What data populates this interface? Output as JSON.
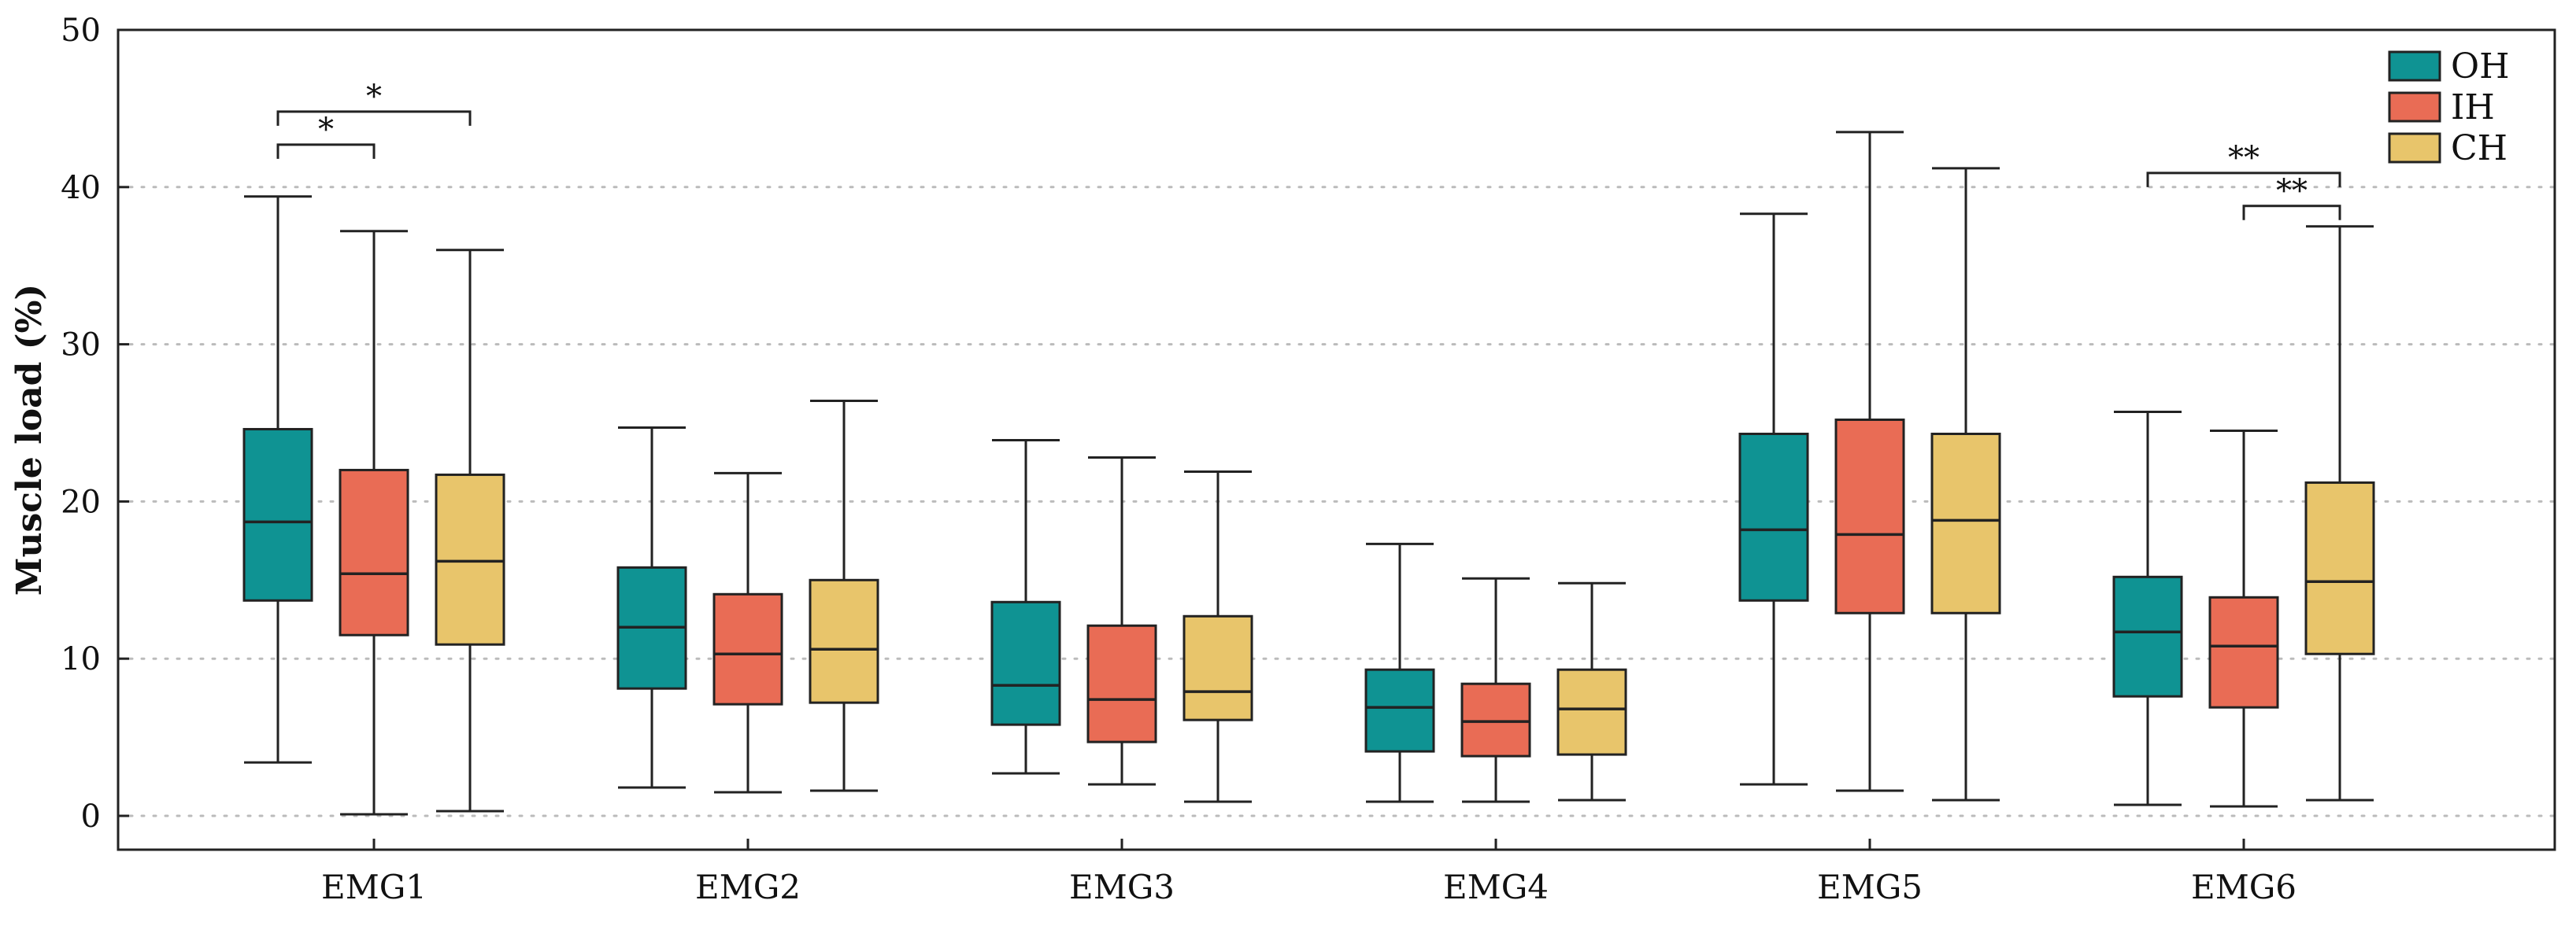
{
  "chart_data": {
    "type": "box",
    "ylabel": "Muscle load (%)",
    "ylim": [
      0,
      50
    ],
    "yticks": [
      0,
      10,
      20,
      30,
      40,
      50
    ],
    "grid": "horizontal-dotted",
    "legend_position": "top-right",
    "categories": [
      "EMG1",
      "EMG2",
      "EMG3",
      "EMG4",
      "EMG5",
      "EMG6"
    ],
    "series": [
      {
        "name": "OH",
        "color": "#0f9393",
        "boxes": [
          {
            "min": 3.4,
            "q1": 13.7,
            "median": 18.7,
            "q3": 24.6,
            "max": 39.4
          },
          {
            "min": 1.8,
            "q1": 8.1,
            "median": 12.0,
            "q3": 15.8,
            "max": 24.7
          },
          {
            "min": 2.7,
            "q1": 5.8,
            "median": 8.3,
            "q3": 13.6,
            "max": 23.9
          },
          {
            "min": 0.9,
            "q1": 4.1,
            "median": 6.9,
            "q3": 9.3,
            "max": 17.3
          },
          {
            "min": 2.0,
            "q1": 13.7,
            "median": 18.2,
            "q3": 24.3,
            "max": 38.3
          },
          {
            "min": 0.7,
            "q1": 7.6,
            "median": 11.7,
            "q3": 15.2,
            "max": 25.7
          }
        ]
      },
      {
        "name": "IH",
        "color": "#e96c55",
        "boxes": [
          {
            "min": 0.1,
            "q1": 11.5,
            "median": 15.4,
            "q3": 22.0,
            "max": 37.2
          },
          {
            "min": 1.5,
            "q1": 7.1,
            "median": 10.3,
            "q3": 14.1,
            "max": 21.8
          },
          {
            "min": 2.0,
            "q1": 4.7,
            "median": 7.4,
            "q3": 12.1,
            "max": 22.8
          },
          {
            "min": 0.9,
            "q1": 3.8,
            "median": 6.0,
            "q3": 8.4,
            "max": 15.1
          },
          {
            "min": 1.6,
            "q1": 12.9,
            "median": 17.9,
            "q3": 25.2,
            "max": 43.5
          },
          {
            "min": 0.6,
            "q1": 6.9,
            "median": 10.8,
            "q3": 13.9,
            "max": 24.5
          }
        ]
      },
      {
        "name": "CH",
        "color": "#e8c56b",
        "boxes": [
          {
            "min": 0.3,
            "q1": 10.9,
            "median": 16.2,
            "q3": 21.7,
            "max": 36.0
          },
          {
            "min": 1.6,
            "q1": 7.2,
            "median": 10.6,
            "q3": 15.0,
            "max": 26.4
          },
          {
            "min": 0.9,
            "q1": 6.1,
            "median": 7.9,
            "q3": 12.7,
            "max": 21.9
          },
          {
            "min": 1.0,
            "q1": 3.9,
            "median": 6.8,
            "q3": 9.3,
            "max": 14.8
          },
          {
            "min": 1.0,
            "q1": 12.9,
            "median": 18.8,
            "q3": 24.3,
            "max": 41.2
          },
          {
            "min": 1.0,
            "q1": 10.3,
            "median": 14.9,
            "q3": 21.2,
            "max": 37.5
          }
        ]
      }
    ],
    "significance": [
      {
        "category": "EMG1",
        "from": "OH",
        "to": "CH",
        "label": "*",
        "y": 44.8
      },
      {
        "category": "EMG1",
        "from": "OH",
        "to": "IH",
        "label": "*",
        "y": 42.7
      },
      {
        "category": "EMG6",
        "from": "OH",
        "to": "CH",
        "label": "**",
        "y": 40.9
      },
      {
        "category": "EMG6",
        "from": "IH",
        "to": "CH",
        "label": "**",
        "y": 38.8
      }
    ]
  }
}
